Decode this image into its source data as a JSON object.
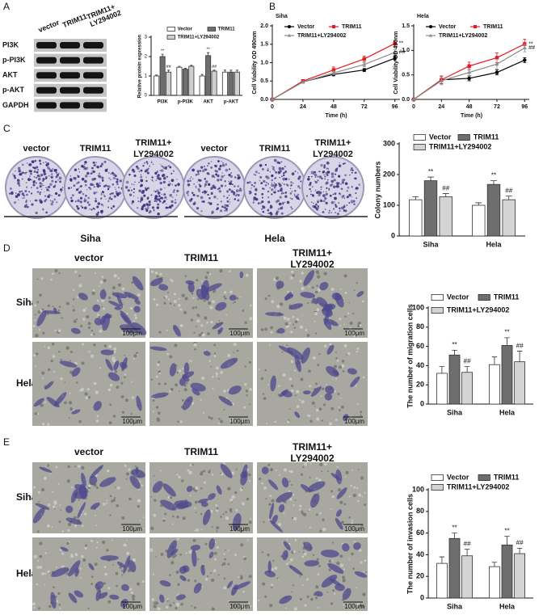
{
  "figure": {
    "panel_labels": [
      "A",
      "B",
      "C",
      "D",
      "E"
    ],
    "blot": {
      "columns": [
        [
          "vector"
        ],
        [
          "TRIM11"
        ],
        [
          "TRIM11+",
          "LY294002"
        ]
      ],
      "rows": [
        "PI3K",
        "p-PI3K",
        "AKT",
        "p-AKT",
        "GAPDH"
      ]
    },
    "colony": {
      "columns": [
        [
          "vector"
        ],
        [
          "TRIM11"
        ],
        [
          "TRIM11+",
          "LY294002"
        ],
        [
          "vector"
        ],
        [
          "TRIM11"
        ],
        [
          "TRIM11+",
          "LY294002"
        ]
      ],
      "groups": [
        "Siha",
        "Hela"
      ]
    },
    "migration": {
      "columns": [
        [
          "vector"
        ],
        [
          "TRIM11"
        ],
        [
          "TRIM11+",
          "LY294002"
        ]
      ],
      "rows": [
        "Siha",
        "Hela"
      ],
      "scale_bar": "100μm"
    },
    "invasion": {
      "columns": [
        [
          "vector"
        ],
        [
          "TRIM11"
        ],
        [
          "TRIM11+",
          "LY294002"
        ]
      ],
      "rows": [
        "Siha",
        "Hela"
      ],
      "scale_bar": "100μm"
    }
  },
  "chart_data": [
    {
      "type": "bar",
      "ylabel": "Relative protein expression",
      "categories": [
        "PI3K",
        "p-PI3K",
        "AKT",
        "p-AKT"
      ],
      "ylim": [
        0,
        3
      ],
      "yticks": [
        0,
        1,
        2,
        3
      ],
      "series": [
        {
          "name": "Vector",
          "color": "#ffffff",
          "values": [
            1.0,
            1.45,
            1.0,
            1.2
          ],
          "errors": [
            0.05,
            0.05,
            0.08,
            0.1
          ]
        },
        {
          "name": "TRIM11",
          "color": "#6e6e6e",
          "values": [
            2.0,
            1.35,
            2.05,
            1.2
          ],
          "errors": [
            0.12,
            0.05,
            0.15,
            0.1
          ],
          "marks": [
            "**",
            null,
            "**",
            null
          ]
        },
        {
          "name": "TRIM11+LY294002",
          "color": "#d0d0d0",
          "values": [
            1.2,
            1.5,
            1.25,
            1.2
          ],
          "errors": [
            0.1,
            0.05,
            0.05,
            0.1
          ],
          "marks": [
            "##",
            null,
            "##",
            null
          ]
        }
      ]
    },
    {
      "type": "line",
      "title": "Siha",
      "xlabel": "Time (h)",
      "ylabel": "Cell Viability OD 490nm",
      "x": [
        0,
        24,
        48,
        72,
        96
      ],
      "xlim": [
        0,
        100
      ],
      "xticks": [
        0,
        24,
        48,
        72,
        96
      ],
      "ylim": [
        0,
        2
      ],
      "yticks": [
        {
          "value": 0,
          "label": "0.0"
        },
        0.5,
        {
          "value": 1,
          "label": "1.0"
        },
        1.5,
        {
          "value": 2,
          "label": "2.0"
        }
      ],
      "series": [
        {
          "name": "Vector",
          "color": "#000000",
          "marker": "circle",
          "values": [
            0,
            0.48,
            0.68,
            0.8,
            1.12
          ],
          "errors": [
            0,
            0.03,
            0.04,
            0.04,
            0.06
          ]
        },
        {
          "name": "TRIM11",
          "color": "#e8191e",
          "marker": "square",
          "values": [
            0,
            0.5,
            0.8,
            1.1,
            1.52
          ],
          "errors": [
            0,
            0.04,
            0.08,
            0.08,
            0.08
          ],
          "end_mark": "**"
        },
        {
          "name": "TRIM11+LY294002",
          "color": "#8c8c8c",
          "marker": "triangle",
          "values": [
            0,
            0.47,
            0.72,
            0.95,
            1.28
          ],
          "errors": [
            0,
            0.03,
            0.05,
            0.06,
            0.07
          ],
          "end_mark": "##"
        }
      ]
    },
    {
      "type": "line",
      "title": "Hela",
      "xlabel": "Time (h)",
      "ylabel": "Cell Viability OD 490nm",
      "x": [
        0,
        24,
        48,
        72,
        96
      ],
      "xlim": [
        0,
        100
      ],
      "xticks": [
        0,
        24,
        48,
        72,
        96
      ],
      "ylim": [
        0,
        1.5
      ],
      "yticks": [
        {
          "value": 0,
          "label": "0.0"
        },
        0.5,
        {
          "value": 1,
          "label": "1.0"
        },
        1.5
      ],
      "series": [
        {
          "name": "Vector",
          "color": "#000000",
          "marker": "circle",
          "values": [
            0,
            0.4,
            0.43,
            0.55,
            0.8
          ],
          "errors": [
            0,
            0.08,
            0.05,
            0.05,
            0.05
          ]
        },
        {
          "name": "TRIM11",
          "color": "#e8191e",
          "marker": "square",
          "values": [
            0,
            0.4,
            0.68,
            0.85,
            1.13
          ],
          "errors": [
            0,
            0.08,
            0.08,
            0.1,
            0.1
          ],
          "end_mark": "**"
        },
        {
          "name": "TRIM11+LY294002",
          "color": "#8c8c8c",
          "marker": "triangle",
          "values": [
            0,
            0.38,
            0.55,
            0.72,
            1.05
          ],
          "errors": [
            0,
            0.08,
            0.08,
            0.1,
            0.08
          ],
          "end_mark": "##"
        }
      ]
    },
    {
      "type": "bar",
      "ylabel": "Colony numbers",
      "categories": [
        "Siha",
        "Hela"
      ],
      "ylim": [
        0,
        300
      ],
      "yticks": [
        0,
        100,
        200,
        300
      ],
      "series": [
        {
          "name": "Vector",
          "color": "#ffffff",
          "values": [
            118,
            100
          ],
          "errors": [
            10,
            8
          ]
        },
        {
          "name": "TRIM11",
          "color": "#6e6e6e",
          "values": [
            180,
            168
          ],
          "errors": [
            12,
            12
          ],
          "marks": [
            "**",
            "**"
          ]
        },
        {
          "name": "TRIM11+LY294002",
          "color": "#d4d4d4",
          "values": [
            128,
            118
          ],
          "errors": [
            10,
            12
          ],
          "marks": [
            "##",
            "##"
          ]
        }
      ]
    },
    {
      "type": "bar",
      "ylabel": "The number of migration cells",
      "categories": [
        "Siha",
        "Hela"
      ],
      "ylim": [
        0,
        100
      ],
      "yticks": [
        0,
        20,
        40,
        60,
        80,
        100
      ],
      "series": [
        {
          "name": "Vector",
          "color": "#ffffff",
          "values": [
            32,
            41
          ],
          "errors": [
            7,
            8
          ]
        },
        {
          "name": "TRIM11",
          "color": "#6e6e6e",
          "values": [
            51,
            61
          ],
          "errors": [
            5,
            8
          ],
          "marks": [
            "**",
            "**"
          ]
        },
        {
          "name": "TRIM11+LY294002",
          "color": "#d4d4d4",
          "values": [
            33,
            44
          ],
          "errors": [
            6,
            11
          ],
          "marks": [
            "##",
            "##"
          ]
        }
      ]
    },
    {
      "type": "bar",
      "ylabel": "The number of invasion cells",
      "categories": [
        "Siha",
        "Hela"
      ],
      "ylim": [
        0,
        100
      ],
      "yticks": [
        0,
        20,
        40,
        60,
        80,
        100
      ],
      "series": [
        {
          "name": "Vector",
          "color": "#ffffff",
          "values": [
            32,
            29
          ],
          "errors": [
            6,
            4
          ]
        },
        {
          "name": "TRIM11",
          "color": "#6e6e6e",
          "values": [
            55,
            49
          ],
          "errors": [
            5,
            8
          ],
          "marks": [
            "**",
            "**"
          ]
        },
        {
          "name": "TRIM11+LY294002",
          "color": "#d4d4d4",
          "values": [
            39,
            41
          ],
          "errors": [
            6,
            5
          ],
          "marks": [
            "##",
            "##"
          ]
        }
      ]
    }
  ]
}
